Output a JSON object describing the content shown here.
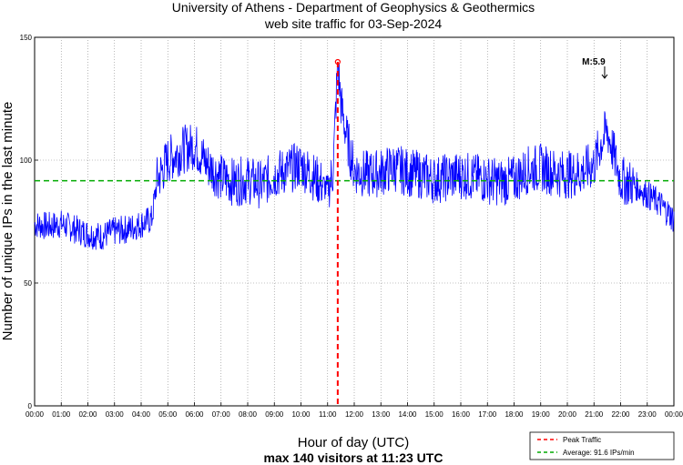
{
  "chart_data": {
    "type": "line",
    "title": "University of Athens - Department of Geophysics & Geothermics",
    "subtitle": "web site traffic for 03-Sep-2024",
    "xlabel": "Hour of day (UTC)",
    "ylabel": "Number of unique IPs in the last minute",
    "footer": "max 140 visitors at 11:23 UTC",
    "x_tick_labels": [
      "00:00",
      "01:00",
      "02:00",
      "03:00",
      "04:00",
      "05:00",
      "06:00",
      "07:00",
      "08:00",
      "09:00",
      "10:00",
      "11:00",
      "12:00",
      "13:00",
      "14:00",
      "15:00",
      "16:00",
      "17:00",
      "18:00",
      "19:00",
      "20:00",
      "21:00",
      "22:00",
      "23:00",
      "00:00"
    ],
    "y_ticks": [
      0,
      50,
      100,
      150
    ],
    "ylim": [
      0,
      150
    ],
    "xlim": [
      0,
      24
    ],
    "grid": true,
    "series": [
      {
        "name": "visitors",
        "color": "#0000ff",
        "x": [
          0,
          0.5,
          1,
          1.5,
          2,
          2.5,
          3,
          3.5,
          4,
          4.4,
          4.6,
          5,
          5.5,
          6,
          6.5,
          7,
          7.5,
          8,
          8.5,
          9,
          9.5,
          10,
          10.5,
          11,
          11.2,
          11.38,
          11.5,
          11.7,
          12,
          12.5,
          13,
          13.5,
          14,
          14.5,
          15,
          15.5,
          16,
          16.5,
          17,
          17.5,
          18,
          18.5,
          19,
          19.5,
          20,
          20.5,
          21,
          21.3,
          21.5,
          21.8,
          22,
          22.5,
          23,
          23.5,
          24
        ],
        "y": [
          74,
          73,
          74,
          72,
          70,
          69,
          71,
          72,
          74,
          76,
          92,
          100,
          104,
          106,
          98,
          93,
          91,
          92,
          90,
          94,
          96,
          98,
          93,
          88,
          95,
          140,
          123,
          110,
          96,
          94,
          95,
          97,
          95,
          94,
          92,
          93,
          94,
          93,
          92,
          91,
          92,
          96,
          97,
          95,
          94,
          95,
          98,
          108,
          112,
          100,
          92,
          90,
          86,
          82,
          76
        ]
      }
    ],
    "reference_lines": [
      {
        "name": "Peak Traffic",
        "orientation": "vertical",
        "x": 11.38,
        "color": "#ff0000",
        "style": "dashed"
      },
      {
        "name": "Average: 91.6 IPs/min",
        "orientation": "horizontal",
        "y": 91.6,
        "color": "#00aa00",
        "style": "dashed"
      }
    ],
    "peak_marker": {
      "x": 11.38,
      "y": 140,
      "color": "#ff0000"
    },
    "annotation": {
      "text": "M:5.9",
      "x": 21.4,
      "y": 133
    },
    "legend": {
      "position": "bottom-right",
      "entries": [
        {
          "label": "Peak Traffic",
          "color": "#ff0000"
        },
        {
          "label": "Average: 91.6 IPs/min",
          "color": "#00aa00"
        }
      ]
    }
  }
}
